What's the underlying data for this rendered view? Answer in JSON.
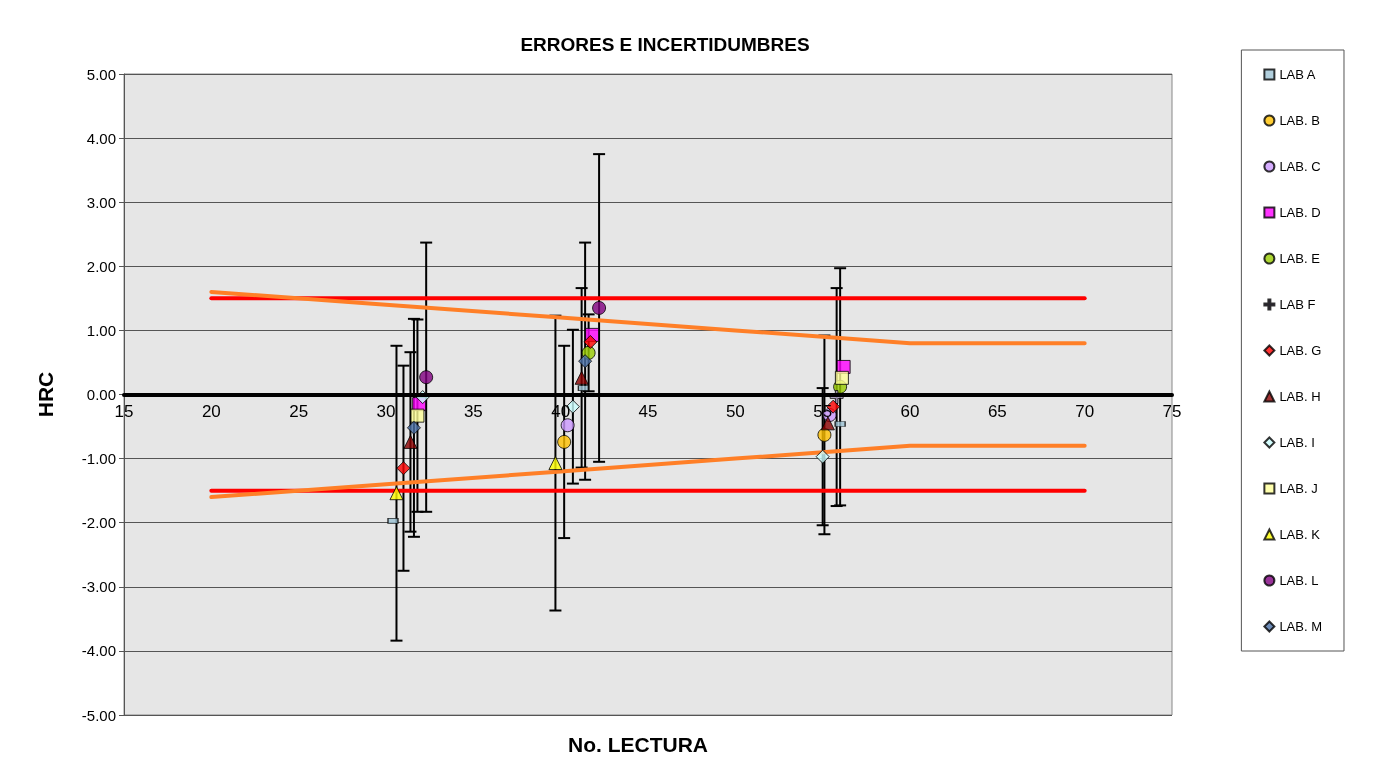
{
  "chart_data": {
    "type": "scatter",
    "title": "ERRORES E INCERTIDUMBRES",
    "xlabel": "No. LECTURA",
    "ylabel": "HRC",
    "xlim": [
      15,
      75
    ],
    "xticks": [
      15,
      20,
      25,
      30,
      35,
      40,
      45,
      50,
      55,
      60,
      65,
      70,
      75
    ],
    "ylim": [
      -5,
      5
    ],
    "yticks": [
      {
        "value": -5,
        "label": "-5.00"
      },
      {
        "value": -4,
        "label": "-4.00"
      },
      {
        "value": -3,
        "label": "-3.00"
      },
      {
        "value": -2,
        "label": "-2.00"
      },
      {
        "value": -1,
        "label": "-1.00"
      },
      {
        "value": 0,
        "label": "0.00"
      },
      {
        "value": 1,
        "label": "1.00"
      },
      {
        "value": 2,
        "label": "2.00"
      },
      {
        "value": 3,
        "label": "3.00"
      },
      {
        "value": 4,
        "label": "4.00"
      },
      {
        "value": 5,
        "label": "5.00"
      }
    ],
    "grid": "y",
    "legend": "right",
    "series": [
      {
        "name": "LAB A",
        "color": "#9dc3d5",
        "marker": "square",
        "x": [
          30.4,
          41.3,
          56.0
        ],
        "values": [
          -1.97,
          0.1,
          -0.46
        ],
        "errors": [
          null,
          null,
          null
        ]
      },
      {
        "name": "LAB. B",
        "color": "#ffc000",
        "marker": "circle",
        "x": [
          null,
          40.2,
          55.1
        ],
        "values": [
          null,
          -0.74,
          -0.63
        ],
        "errors": [
          null,
          1.5,
          1.55
        ]
      },
      {
        "name": "LAB. C",
        "color": "#cc99ff",
        "marker": "circle",
        "x": [
          null,
          40.4,
          55.4
        ],
        "values": [
          null,
          -0.48,
          -0.32
        ],
        "errors": [
          null,
          null,
          null
        ]
      },
      {
        "name": "LAB. D",
        "color": "#ff00ff",
        "marker": "square",
        "x": [
          31.9,
          41.8,
          56.2
        ],
        "values": [
          -0.15,
          0.93,
          0.43
        ],
        "errors": [
          null,
          null,
          null
        ]
      },
      {
        "name": "LAB. E",
        "color": "#99cc00",
        "marker": "circle",
        "x": [
          null,
          41.6,
          56.0
        ],
        "values": [
          null,
          0.65,
          0.12
        ],
        "errors": [
          null,
          0.6,
          1.85
        ]
      },
      {
        "name": "LAB F",
        "color": "#b9a9d0",
        "marker": "cross",
        "x": [
          null,
          null,
          55.8
        ],
        "values": [
          null,
          null,
          -0.04
        ],
        "errors": [
          null,
          null,
          1.7
        ]
      },
      {
        "name": "LAB. G",
        "color": "#ff0000",
        "marker": "diamond",
        "x": [
          31.0,
          41.7,
          55.6
        ],
        "values": [
          -1.15,
          0.82,
          -0.19
        ],
        "errors": [
          1.6,
          null,
          null
        ]
      },
      {
        "name": "LAB. H",
        "color": "#8b0000",
        "marker": "triangle",
        "x": [
          31.4,
          41.2,
          55.3
        ],
        "values": [
          -0.74,
          0.26,
          -0.45
        ],
        "errors": [
          1.4,
          1.4,
          null
        ]
      },
      {
        "name": "LAB. I",
        "color": "#ccffff",
        "marker": "diamond",
        "x": [
          32.1,
          40.7,
          55.0
        ],
        "values": [
          -0.04,
          -0.19,
          -0.97
        ],
        "errors": [
          null,
          1.2,
          1.07
        ]
      },
      {
        "name": "LAB. J",
        "color": "#ffff99",
        "marker": "square",
        "x": [
          31.8,
          41.6,
          56.1
        ],
        "values": [
          -0.33,
          null,
          0.26
        ],
        "errors": [
          1.5,
          null,
          null
        ]
      },
      {
        "name": "LAB. K",
        "color": "#ffff00",
        "marker": "triangle",
        "x": [
          30.6,
          39.7,
          null
        ],
        "values": [
          -1.54,
          -1.07,
          null
        ],
        "errors": [
          2.3,
          2.3,
          null
        ]
      },
      {
        "name": "LAB. L",
        "color": "#800080",
        "marker": "circle",
        "x": [
          32.3,
          42.2,
          null
        ],
        "values": [
          0.27,
          1.35,
          null
        ],
        "errors": [
          2.1,
          2.4,
          null
        ]
      },
      {
        "name": "LAB. M",
        "color": "#4a6fa5",
        "marker": "diamond",
        "x": [
          31.6,
          41.4,
          null
        ],
        "values": [
          -0.52,
          0.52,
          null
        ],
        "errors": [
          1.7,
          1.85,
          null
        ]
      },
      {
        "type": "line",
        "color": "#ff0000",
        "marker": "none",
        "x": [
          20,
          70
        ],
        "values": [
          1.5,
          1.5
        ]
      },
      {
        "type": "line",
        "color": "#ff0000",
        "marker": "none",
        "x": [
          20,
          70
        ],
        "values": [
          -1.5,
          -1.5
        ]
      },
      {
        "type": "line",
        "color": "#ff7f27",
        "marker": "none",
        "x": [
          20,
          30,
          40,
          50,
          55,
          60,
          65,
          70
        ],
        "values": [
          1.6,
          1.4,
          1.2,
          1.0,
          0.9,
          0.8,
          0.8,
          0.8
        ]
      },
      {
        "type": "line",
        "color": "#ff7f27",
        "marker": "none",
        "x": [
          20,
          30,
          40,
          50,
          55,
          60,
          65,
          70
        ],
        "values": [
          -1.6,
          -1.4,
          -1.2,
          -1.0,
          -0.9,
          -0.8,
          -0.8,
          -0.8
        ]
      }
    ]
  }
}
